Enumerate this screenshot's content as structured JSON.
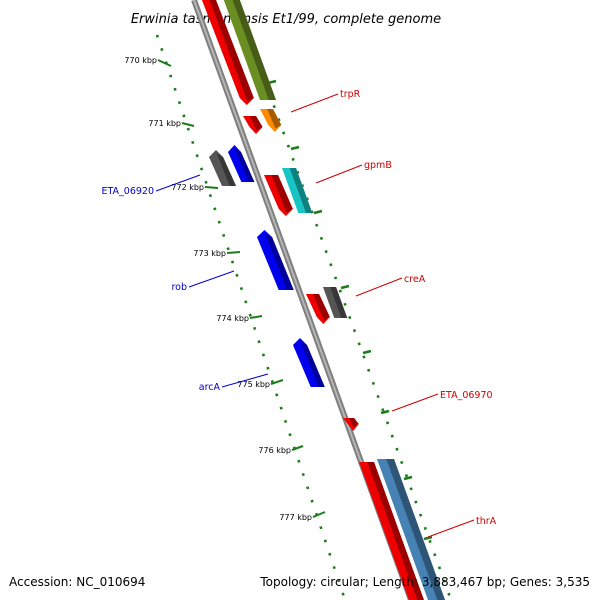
{
  "title": "Erwinia tasmaniensis Et1/99, complete genome",
  "accession": "Accession: NC_010694",
  "topology": "Topology: circular; Length: 3,883,467 bp; Genes: 3,535",
  "colors": {
    "backbone": "#7f7f7f",
    "tick": "#1a7d1a",
    "forward_label": "#cc0000",
    "reverse_label": "#0000cc",
    "forward_gene": "#ee0000",
    "reverse_gene": "#0000ee",
    "other_gene": "#555555",
    "olive": "#6b8e23",
    "orange": "#ff8c00",
    "cyan": "#17c5c5",
    "steelblue": "#4682b4"
  },
  "ruler": [
    {
      "label": "770 kbp"
    },
    {
      "label": "771 kbp"
    },
    {
      "label": "772 kbp"
    },
    {
      "label": "773 kbp"
    },
    {
      "label": "774 kbp"
    },
    {
      "label": "775 kbp"
    },
    {
      "label": "776 kbp"
    },
    {
      "label": "777 kbp"
    }
  ],
  "gene_labels": [
    {
      "text": "trpR",
      "strand": "forward"
    },
    {
      "text": "gpmB",
      "strand": "forward"
    },
    {
      "text": "creA",
      "strand": "forward"
    },
    {
      "text": "ETA_06970",
      "strand": "forward"
    },
    {
      "text": "thrA",
      "strand": "forward"
    },
    {
      "text": "ETA_06920",
      "strand": "reverse"
    },
    {
      "text": "rob",
      "strand": "reverse"
    },
    {
      "text": "arcA",
      "strand": "reverse"
    }
  ]
}
